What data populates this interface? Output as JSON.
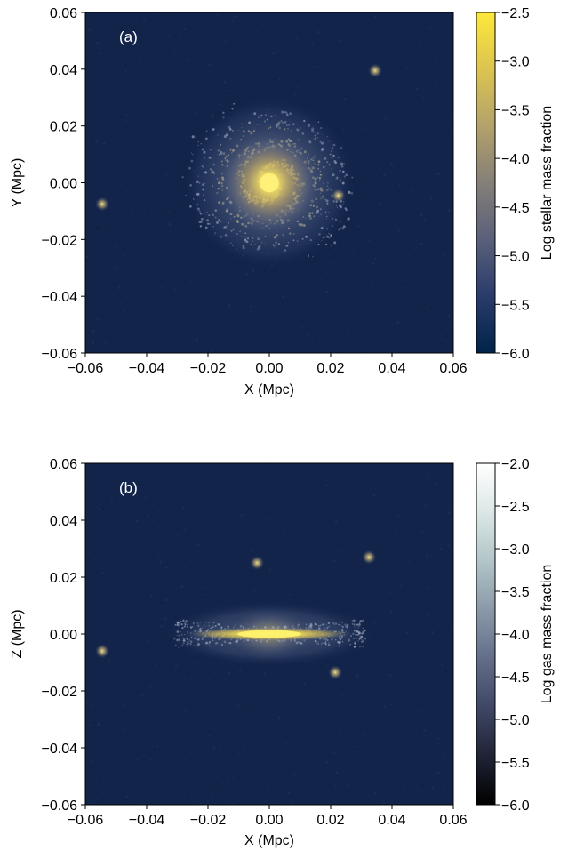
{
  "chart_data": [
    {
      "type": "heatmap",
      "panel_label": "(a)",
      "xlabel": "X (Mpc)",
      "ylabel": "Y (Mpc)",
      "xlim": [
        -0.06,
        0.06
      ],
      "ylim": [
        -0.06,
        0.06
      ],
      "xticks": [
        -0.06,
        -0.04,
        -0.02,
        0.0,
        0.02,
        0.04,
        0.06
      ],
      "xtick_labels": [
        "−0.06",
        "−0.04",
        "−0.02",
        "0.00",
        "0.02",
        "0.04",
        "0.06"
      ],
      "yticks": [
        -0.06,
        -0.04,
        -0.02,
        0.0,
        0.02,
        0.04,
        0.06
      ],
      "ytick_labels": [
        "−0.06",
        "−0.04",
        "−0.02",
        "0.00",
        "0.02",
        "0.04",
        "0.06"
      ],
      "view": "face-on",
      "grid": false,
      "colorbar": {
        "label": "Log stellar mass fraction",
        "range": [
          -6.0,
          -2.5
        ],
        "ticks": [
          -6.0,
          -5.5,
          -5.0,
          -4.5,
          -4.0,
          -3.5,
          -3.0,
          -2.5
        ],
        "tick_labels": [
          "−6.0",
          "−5.5",
          "−5.0",
          "−4.5",
          "−4.0",
          "−3.5",
          "−3.0",
          "−2.5"
        ],
        "colors": [
          "#00234a",
          "#2a3b6b",
          "#59607a",
          "#857f78",
          "#b3a26a",
          "#dcc450",
          "#fde83a"
        ]
      },
      "background_color": "#13244a",
      "features": [
        {
          "kind": "galaxy-disk",
          "x": 0.0,
          "y": 0.0,
          "radius": 0.026
        },
        {
          "kind": "satellite",
          "x": 0.0345,
          "y": 0.0395
        },
        {
          "kind": "satellite",
          "x": -0.0545,
          "y": -0.0075
        },
        {
          "kind": "satellite",
          "x": 0.0225,
          "y": -0.0045
        }
      ]
    },
    {
      "type": "heatmap",
      "panel_label": "(b)",
      "xlabel": "X (Mpc)",
      "ylabel": "Z (Mpc)",
      "xlim": [
        -0.06,
        0.06
      ],
      "ylim": [
        -0.06,
        0.06
      ],
      "xticks": [
        -0.06,
        -0.04,
        -0.02,
        0.0,
        0.02,
        0.04,
        0.06
      ],
      "xtick_labels": [
        "−0.06",
        "−0.04",
        "−0.02",
        "0.00",
        "0.02",
        "0.04",
        "0.06"
      ],
      "yticks": [
        -0.06,
        -0.04,
        -0.02,
        0.0,
        0.02,
        0.04,
        0.06
      ],
      "ytick_labels": [
        "−0.06",
        "−0.04",
        "−0.02",
        "0.00",
        "0.02",
        "0.04",
        "0.06"
      ],
      "view": "edge-on",
      "grid": false,
      "colorbar": {
        "label": "Log gas mass fraction",
        "range": [
          -6.0,
          -2.0
        ],
        "ticks": [
          -6.0,
          -5.5,
          -5.0,
          -4.5,
          -4.0,
          -3.5,
          -3.0,
          -2.5,
          -2.0
        ],
        "tick_labels": [
          "−6.0",
          "−5.5",
          "−5.0",
          "−4.5",
          "−4.0",
          "−3.5",
          "−3.0",
          "−2.5",
          "−2.0"
        ],
        "colors": [
          "#000000",
          "#1f2336",
          "#3f4766",
          "#636e8a",
          "#8a99a8",
          "#b2c5c8",
          "#dbe7e6",
          "#ffffff"
        ]
      },
      "background_color": "#13244a",
      "features": [
        {
          "kind": "galaxy-disk",
          "x": 0.0,
          "y": 0.0,
          "radius": 0.026
        },
        {
          "kind": "satellite",
          "x": 0.0325,
          "y": 0.027
        },
        {
          "kind": "satellite",
          "x": -0.0545,
          "y": -0.006
        },
        {
          "kind": "satellite",
          "x": 0.0215,
          "y": -0.0135
        },
        {
          "kind": "satellite",
          "x": -0.004,
          "y": 0.025
        }
      ]
    }
  ]
}
